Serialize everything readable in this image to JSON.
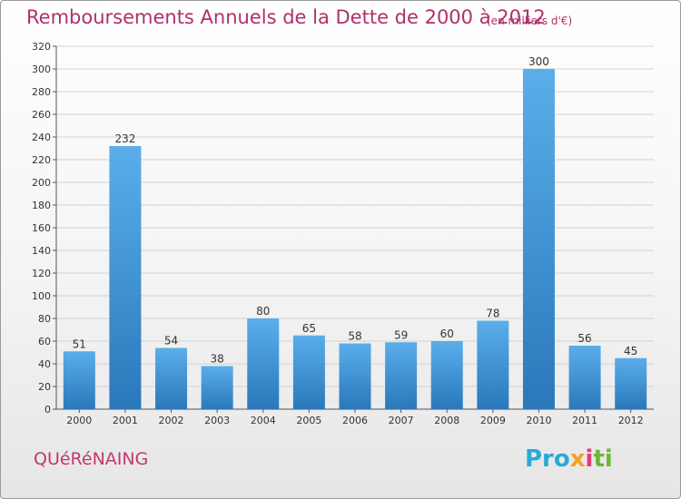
{
  "title": "Remboursements Annuels de la Dette de 2000 à 2012",
  "unit_note": "(en milliers d'€)",
  "town": "QUéRéNAING",
  "logo": {
    "p1": "Pro",
    "p2": "x",
    "p3": "i",
    "p4": "ti"
  },
  "colors": {
    "bar_top": "#5aaeea",
    "bar_bottom": "#2a78bb",
    "title": "#b0306a",
    "grid": "#cfcfcf"
  },
  "chart_data": {
    "type": "bar",
    "title": "Remboursements Annuels de la Dette de 2000 à 2012",
    "xlabel": "",
    "ylabel": "",
    "categories": [
      "2000",
      "2001",
      "2002",
      "2003",
      "2004",
      "2005",
      "2006",
      "2007",
      "2008",
      "2009",
      "2010",
      "2011",
      "2012"
    ],
    "values": [
      51,
      232,
      54,
      38,
      80,
      65,
      58,
      59,
      60,
      78,
      300,
      56,
      45
    ],
    "ylim": [
      0,
      320
    ],
    "yticks": [
      0,
      20,
      40,
      60,
      80,
      100,
      120,
      140,
      160,
      180,
      200,
      220,
      240,
      260,
      280,
      300,
      320
    ],
    "grid": true,
    "data_labels": true
  }
}
